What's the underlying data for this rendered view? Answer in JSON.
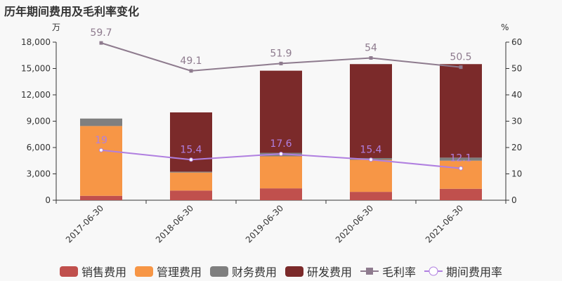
{
  "title": "历年期间费用及毛利率变化",
  "chart_data": {
    "type": "bar",
    "stacked": true,
    "categories": [
      "2017-06-30",
      "2018-06-30",
      "2019-06-30",
      "2020-06-30",
      "2021-06-30"
    ],
    "y_left": {
      "unit": "万",
      "ylim": [
        0,
        18000
      ],
      "ticks": [
        "0",
        "3,000",
        "6,000",
        "9,000",
        "12,000",
        "15,000",
        "18,000"
      ]
    },
    "y_right": {
      "unit": "%",
      "ylim": [
        0,
        60
      ],
      "ticks": [
        "0",
        "10",
        "20",
        "30",
        "40",
        "50",
        "60"
      ]
    },
    "series": [
      {
        "name": "销售费用",
        "kind": "bar",
        "color": "#c0504d",
        "values": [
          500,
          1100,
          1350,
          950,
          1300
        ]
      },
      {
        "name": "管理费用",
        "kind": "bar",
        "color": "#f79646",
        "values": [
          7950,
          2050,
          3650,
          3650,
          3200
        ]
      },
      {
        "name": "财务费用",
        "kind": "bar",
        "color": "#7f7f7f",
        "values": [
          850,
          100,
          400,
          200,
          350
        ]
      },
      {
        "name": "研发费用",
        "kind": "bar",
        "color": "#7b2a2a",
        "values": [
          0,
          6750,
          9350,
          10700,
          10650
        ]
      },
      {
        "name": "毛利率",
        "kind": "line",
        "axis": "right",
        "color": "#8e7b8e",
        "values": [
          59.7,
          49.1,
          51.9,
          54,
          50.5
        ],
        "labels": [
          "59.7",
          "49.1",
          "51.9",
          "54",
          "50.5"
        ]
      },
      {
        "name": "期间费用率",
        "kind": "line",
        "axis": "right",
        "color": "#b07fe0",
        "values": [
          19,
          15.4,
          17.6,
          15.4,
          12.1
        ],
        "labels": [
          "19",
          "15.4",
          "17.6",
          "15.4",
          "12.1"
        ]
      }
    ],
    "grid": false,
    "legend": "bottom"
  }
}
